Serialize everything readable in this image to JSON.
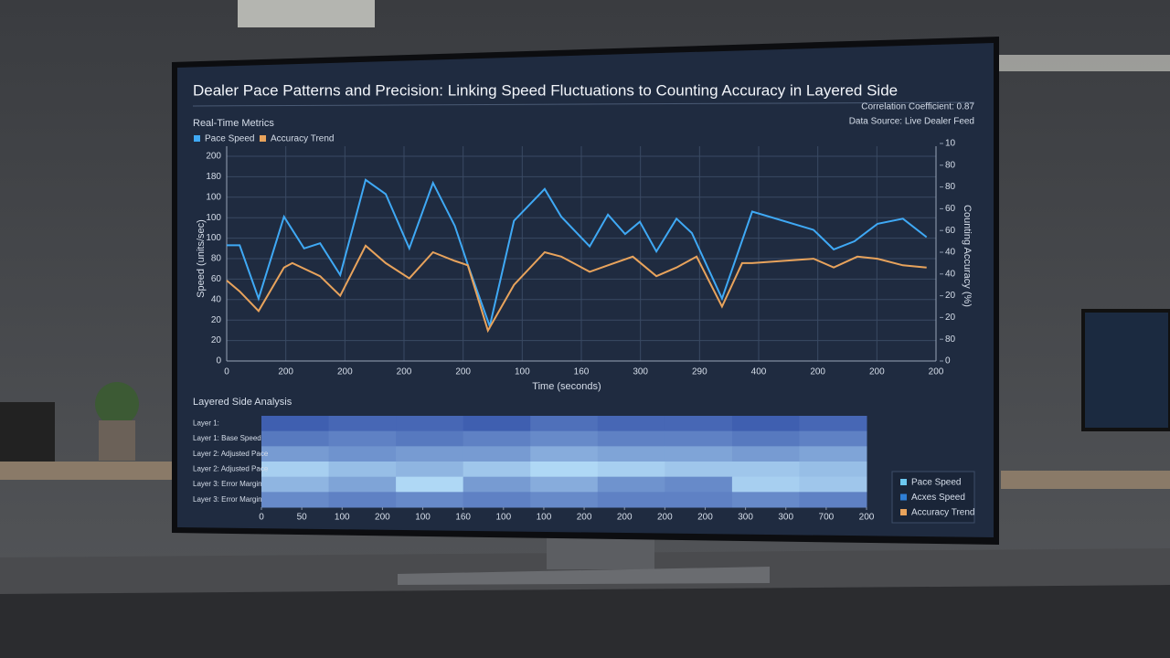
{
  "header": {
    "title": "Dealer Pace Patterns and Precision: Linking Speed Fluctuations to Counting Accuracy in Layered Side"
  },
  "info": {
    "correlation": "Correlation Coefficient: 0.87",
    "source": "Data Source: Live Dealer Feed"
  },
  "legend_box": {
    "items": [
      {
        "label": "Pace Speed",
        "color": "#6cc8f0"
      },
      {
        "label": "Acxes Speed",
        "color": "#2f7fd6"
      },
      {
        "label": "Accuracy Trend",
        "color": "#e8a35c"
      }
    ]
  },
  "chart_data": [
    {
      "type": "line",
      "title": "Real-Time Metrics",
      "x_label": "Time (seconds)",
      "y_label": "Speed (units/sec)",
      "y2_label": "Counting Accuracy (%)",
      "grid": true,
      "legend": "top-left",
      "xlim": [
        0,
        12
      ],
      "xticks": [
        0,
        {
          "value": 1,
          "label": "200"
        },
        {
          "value": 2,
          "label": "200"
        },
        {
          "value": 3,
          "label": "200"
        },
        {
          "value": 4,
          "label": "200"
        },
        {
          "value": 5,
          "label": "100"
        },
        {
          "value": 6,
          "label": "160"
        },
        {
          "value": 7,
          "label": "300"
        },
        {
          "value": 8,
          "label": "290"
        },
        {
          "value": 9,
          "label": "400"
        },
        {
          "value": 10,
          "label": "200"
        },
        {
          "value": 11,
          "label": "200"
        },
        {
          "value": 12,
          "label": "200"
        }
      ],
      "ylim": [
        0,
        200
      ],
      "yticks": [
        0,
        20,
        {
          "value": 40,
          "label": "20"
        },
        {
          "value": 60,
          "label": "40"
        },
        {
          "value": 80,
          "label": "60"
        },
        {
          "value": 100,
          "label": "80"
        },
        {
          "value": 120,
          "label": "100"
        },
        {
          "value": 140,
          "label": "100"
        },
        {
          "value": 160,
          "label": "100"
        },
        180,
        200
      ],
      "y2lim": [
        0,
        100
      ],
      "y2ticks": [
        0,
        {
          "value": 10,
          "label": "80"
        },
        20,
        {
          "value": 30,
          "label": "20"
        },
        40,
        {
          "value": 50,
          "label": "40"
        },
        60,
        {
          "value": 70,
          "label": "60"
        },
        80,
        {
          "value": 90,
          "label": "80"
        },
        {
          "value": 100,
          "label": "10"
        }
      ],
      "series": [
        {
          "name": "Pace Speed",
          "color": "#3fa9f5",
          "x": [
            0,
            0.22,
            0.54,
            0.97,
            1.31,
            1.58,
            1.92,
            2.35,
            2.69,
            3.09,
            3.49,
            3.86,
            4.08,
            4.45,
            4.86,
            5.38,
            5.66,
            6.14,
            6.45,
            6.74,
            6.99,
            7.27,
            7.61,
            7.87,
            8.38,
            8.89,
            9.93,
            10.27,
            10.62,
            11.01,
            11.44,
            11.84
          ],
          "values": [
            113,
            113,
            61,
            141,
            110,
            115,
            84,
            177,
            163,
            110,
            174,
            132,
            94,
            34,
            137,
            168,
            141,
            112,
            143,
            124,
            136,
            107,
            139,
            125,
            61,
            146,
            128,
            109,
            117,
            134,
            139,
            121
          ]
        },
        {
          "name": "Accuracy Trend",
          "color": "#e8a35c",
          "axis": "y2",
          "x": [
            0,
            0.22,
            0.54,
            0.97,
            1.11,
            1.58,
            1.92,
            2.35,
            2.69,
            3.09,
            3.49,
            3.86,
            4.08,
            4.42,
            4.86,
            5.38,
            5.66,
            6.14,
            6.45,
            6.87,
            7.27,
            7.61,
            7.95,
            8.38,
            8.72,
            8.89,
            9.93,
            10.27,
            10.67,
            11.01,
            11.44,
            11.84
          ],
          "values": [
            37,
            32,
            23,
            43,
            45,
            39,
            30,
            53,
            45,
            38,
            50,
            46,
            44,
            14,
            35,
            50,
            48,
            41,
            44,
            48,
            39,
            43,
            48,
            25,
            45,
            45,
            47,
            43,
            48,
            47,
            44,
            43
          ]
        }
      ]
    },
    {
      "type": "heatmap",
      "title": "Layered Side Analysis",
      "rows": [
        "Layer 1:",
        "Layer 1: Base Speed",
        "Layer 2: Adjusted Pace",
        "Layer 2: Adjusted Pace",
        "Layer 3: Error Margin",
        "Layer 3: Error Margin"
      ],
      "xlim": [
        0,
        15
      ],
      "xticks": [
        0,
        {
          "value": 1,
          "label": "50"
        },
        {
          "value": 2,
          "label": "100"
        },
        {
          "value": 3,
          "label": "200"
        },
        {
          "value": 4,
          "label": "100"
        },
        {
          "value": 5,
          "label": "160"
        },
        {
          "value": 6,
          "label": "100"
        },
        {
          "value": 7,
          "label": "100"
        },
        {
          "value": 8,
          "label": "200"
        },
        {
          "value": 9,
          "label": "200"
        },
        {
          "value": 10,
          "label": "200"
        },
        {
          "value": 11,
          "label": "200"
        },
        {
          "value": 12,
          "label": "300"
        },
        {
          "value": 13,
          "label": "300"
        },
        {
          "value": 14,
          "label": "700"
        },
        {
          "value": 15,
          "label": "200"
        }
      ],
      "zlim": [
        0,
        100
      ],
      "colors": [
        "#1f3c9c",
        "#bfe9ff"
      ],
      "values": [
        [
          20,
          25,
          25,
          20,
          30,
          25,
          25,
          20,
          25
        ],
        [
          35,
          40,
          35,
          40,
          45,
          40,
          40,
          35,
          40
        ],
        [
          55,
          50,
          55,
          55,
          65,
          60,
          60,
          55,
          60
        ],
        [
          85,
          75,
          70,
          80,
          90,
          85,
          80,
          80,
          75
        ],
        [
          70,
          60,
          90,
          55,
          65,
          50,
          45,
          85,
          80
        ],
        [
          45,
          40,
          45,
          40,
          45,
          40,
          40,
          45,
          40
        ]
      ]
    }
  ]
}
